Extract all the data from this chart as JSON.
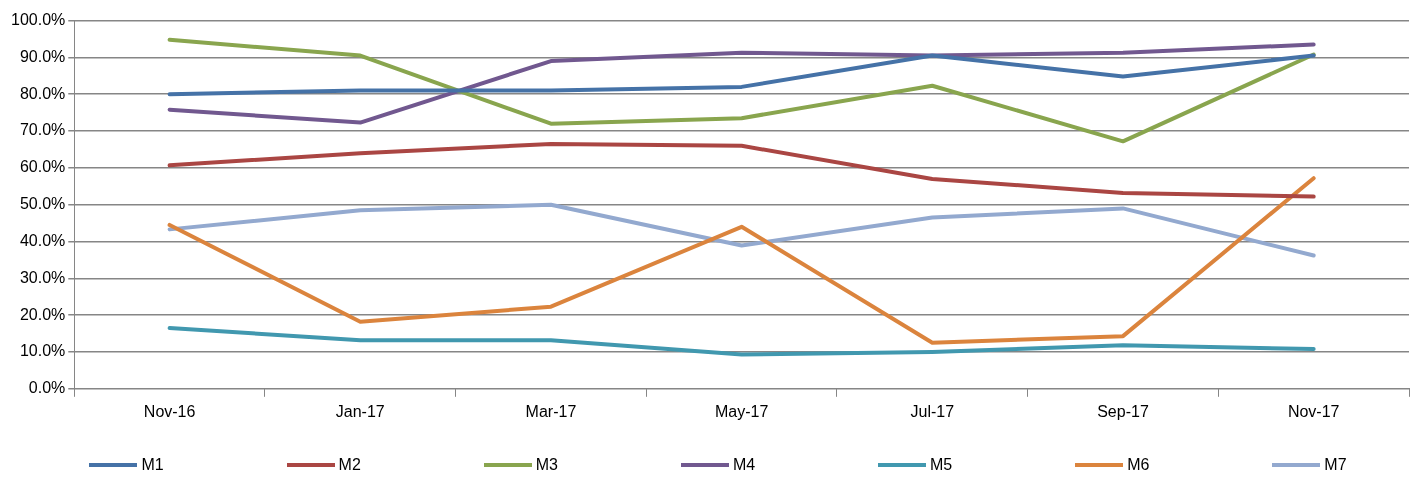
{
  "chart_data": {
    "type": "line",
    "categories": [
      "Nov-16",
      "Jan-17",
      "Mar-17",
      "May-17",
      "Jul-17",
      "Sep-17",
      "Nov-17"
    ],
    "series": [
      {
        "name": "M1",
        "color": "#4572a7",
        "values": [
          80,
          81,
          81,
          82,
          90.5,
          84.8,
          90.5
        ]
      },
      {
        "name": "M2",
        "color": "#aa4643",
        "values": [
          60.7,
          64,
          66.5,
          66,
          57,
          53.2,
          52.2
        ]
      },
      {
        "name": "M3",
        "color": "#89a54e",
        "values": [
          94.8,
          90.5,
          72,
          73.5,
          82.3,
          67.2,
          90.8
        ]
      },
      {
        "name": "M4",
        "color": "#71588f",
        "values": [
          75.8,
          72.3,
          89,
          91.3,
          90.5,
          91.3,
          93.5
        ]
      },
      {
        "name": "M5",
        "color": "#4198af",
        "values": [
          16.5,
          13.2,
          13.2,
          9.3,
          10,
          11.8,
          10.8
        ]
      },
      {
        "name": "M6",
        "color": "#db843d",
        "values": [
          44.5,
          18.2,
          22.3,
          44,
          12.5,
          14.3,
          57.2
        ]
      },
      {
        "name": "M7",
        "color": "#93a9cf",
        "values": [
          43.3,
          48.5,
          50,
          38.9,
          46.5,
          49,
          36.2
        ]
      }
    ],
    "ylim": [
      0,
      100
    ],
    "yticks": [
      {
        "value": 0,
        "label": "0.0%"
      },
      {
        "value": 10,
        "label": "10.0%"
      },
      {
        "value": 20,
        "label": "20.0%"
      },
      {
        "value": 30,
        "label": "30.0%"
      },
      {
        "value": 40,
        "label": "40.0%"
      },
      {
        "value": 50,
        "label": "50.0%"
      },
      {
        "value": 60,
        "label": "60.0%"
      },
      {
        "value": 70,
        "label": "70.0%"
      },
      {
        "value": 80,
        "label": "80.0%"
      },
      {
        "value": 90,
        "label": "90.0%"
      },
      {
        "value": 100,
        "label": "100.0%"
      }
    ],
    "grid": "y",
    "legend": "bottom",
    "marker": "none",
    "line_style": "solid"
  }
}
